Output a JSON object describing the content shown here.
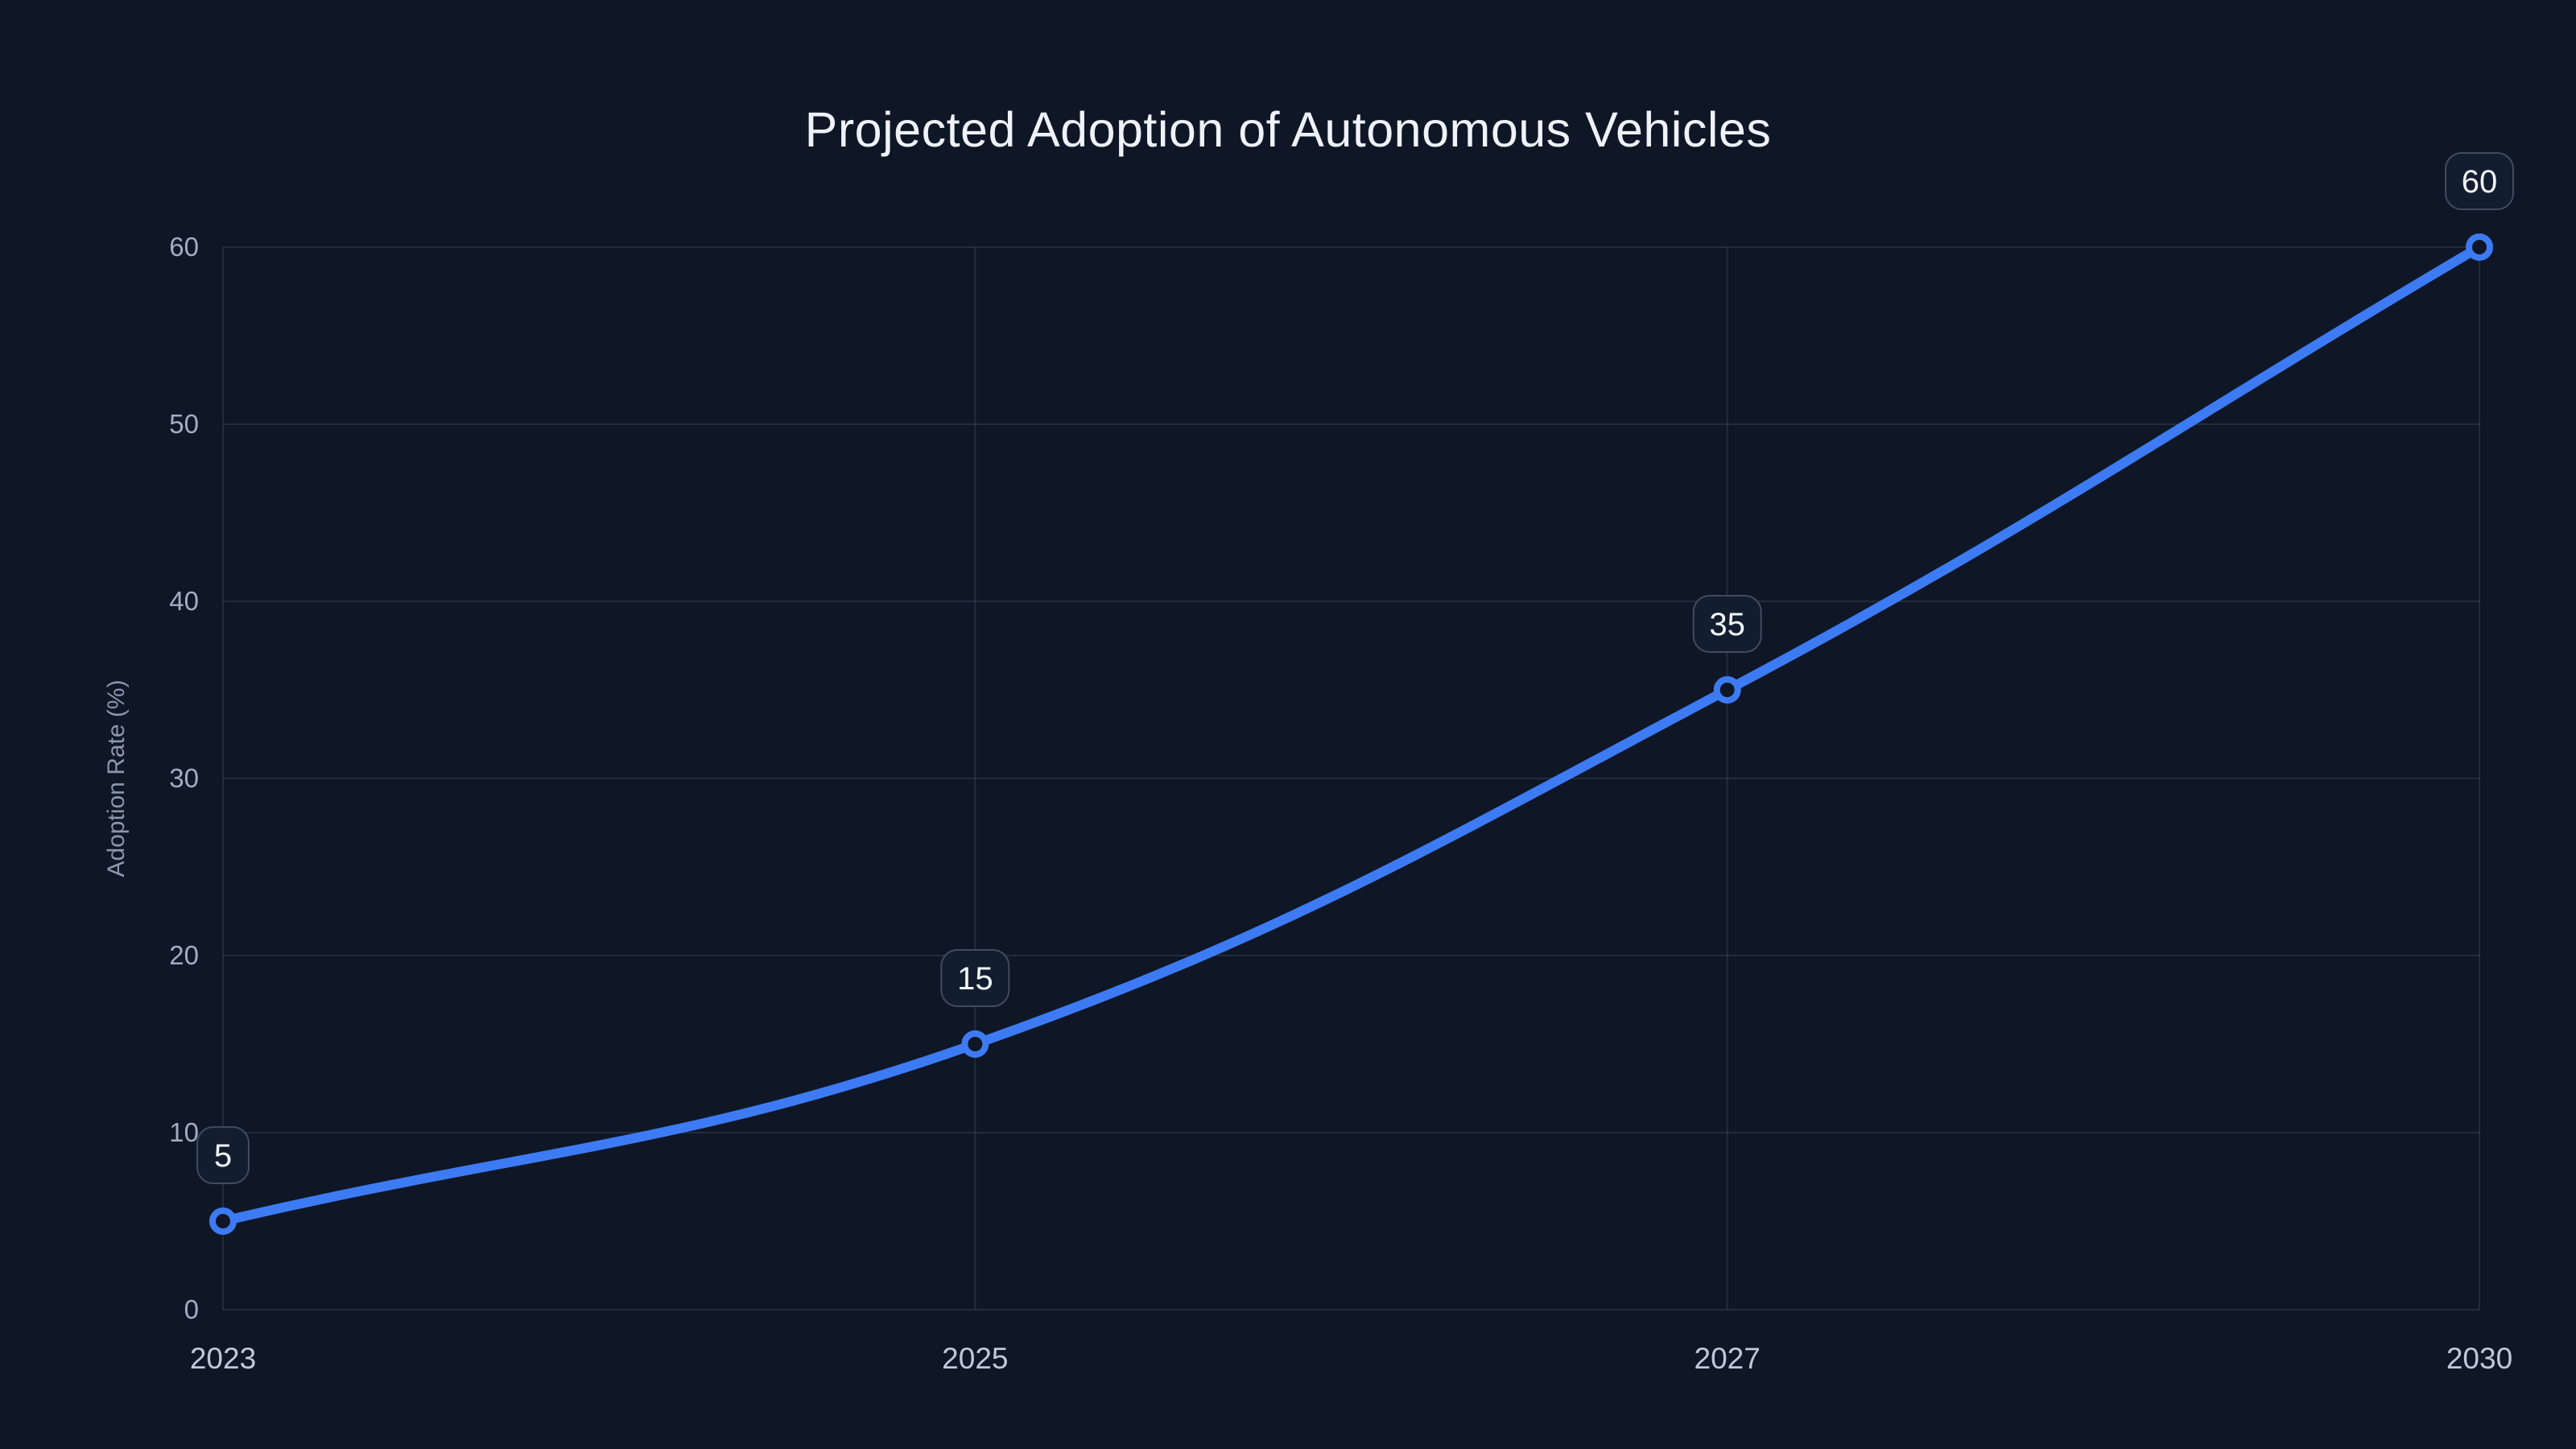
{
  "page": {
    "background_color": "#0f1726"
  },
  "chart_data": {
    "type": "line",
    "title": "Projected Adoption of Autonomous Vehicles",
    "categories": [
      "2023",
      "2025",
      "2027",
      "2030"
    ],
    "series": [
      {
        "name": "Adoption Rate",
        "values": [
          5,
          15,
          35,
          60
        ]
      }
    ],
    "point_labels": [
      "5",
      "15",
      "35",
      "60"
    ],
    "xlabel": "",
    "ylabel": "Adoption Rate (%)",
    "ylim": [
      0,
      60
    ],
    "yticks": [
      0,
      10,
      20,
      30,
      40,
      50,
      60
    ],
    "grid": true,
    "legend": false,
    "line_smoothing_tension": 0.4,
    "colors": {
      "line": "#3d7bf5",
      "point_ring": "#3d7bf5",
      "point_fill": "#0f1726",
      "grid": "rgba(150,165,195,0.15)",
      "y_tick_text": "#a2adc2",
      "x_tick_text": "#c0c9da",
      "axis_title_text": "#8b97ad",
      "chart_title_text": "#eef2f9",
      "label_box_fill": "#131d30",
      "label_box_border": "#404b5e",
      "label_box_text": "#f3f6fb"
    }
  }
}
